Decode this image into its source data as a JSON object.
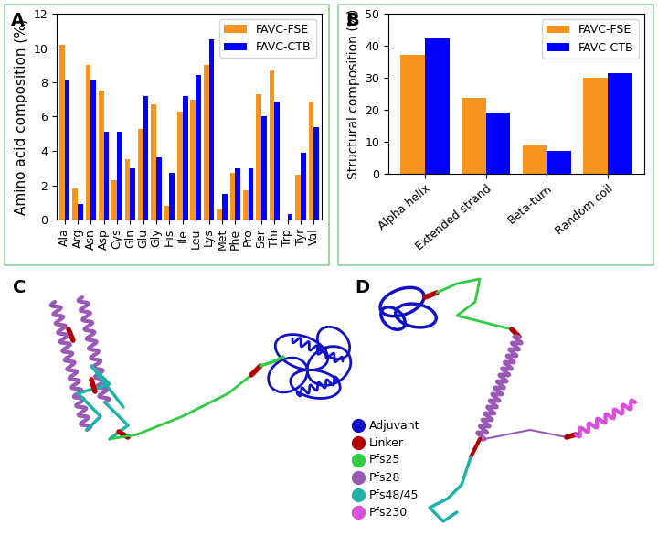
{
  "chart_data": [
    {
      "type": "bar",
      "title": "A",
      "categories": [
        "Ala",
        "Arg",
        "Asn",
        "Asp",
        "Cys",
        "Gln",
        "Glu",
        "Gly",
        "His",
        "Ile",
        "Leu",
        "Lys",
        "Met",
        "Phe",
        "Pro",
        "Ser",
        "Thr",
        "Trp",
        "Tyr",
        "Val"
      ],
      "y_label": "Amino acid composition (%)",
      "series": [
        {
          "name": "FAVC-FSE",
          "color": "#F7941D",
          "values": [
            10.2,
            1.8,
            9.0,
            7.5,
            2.3,
            3.5,
            5.3,
            6.7,
            0.8,
            6.3,
            7.0,
            9.0,
            0.6,
            2.7,
            1.7,
            7.3,
            8.7,
            0.0,
            2.6,
            6.9
          ]
        },
        {
          "name": "FAVC-CTB",
          "color": "#0000FF",
          "values": [
            8.1,
            0.9,
            8.1,
            5.1,
            5.1,
            3.0,
            7.2,
            3.6,
            2.7,
            7.2,
            8.4,
            10.5,
            1.5,
            3.0,
            3.0,
            6.0,
            6.9,
            0.3,
            3.9,
            5.4
          ]
        }
      ],
      "ylim": [
        0,
        12
      ],
      "yticks": [
        0,
        2,
        4,
        6,
        8,
        10,
        12
      ],
      "legend": "upper right"
    },
    {
      "type": "bar",
      "title": "B",
      "categories": [
        "Alpha helix",
        "Extended strand",
        "Beta-turn",
        "Random coil"
      ],
      "y_label": "Structural composition (%)",
      "series": [
        {
          "name": "FAVC-FSE",
          "color": "#F7941D",
          "values": [
            37.2,
            23.8,
            9.0,
            30.0
          ]
        },
        {
          "name": "FAVC-CTB",
          "color": "#0000FF",
          "values": [
            42.3,
            19.2,
            7.2,
            31.3
          ]
        }
      ],
      "ylim": [
        0,
        50
      ],
      "yticks": [
        0,
        10,
        20,
        30,
        40,
        50
      ],
      "legend": "upper right"
    }
  ],
  "structures": {
    "panels": [
      {
        "label": "C"
      },
      {
        "label": "D"
      }
    ],
    "legend": [
      {
        "label": "Adjuvant",
        "color": "#1010C8"
      },
      {
        "label": "Linker",
        "color": "#B00000"
      },
      {
        "label": "Pfs25",
        "color": "#2ECC40"
      },
      {
        "label": "Pfs28",
        "color": "#9B59B6"
      },
      {
        "label": "Pfs48/45",
        "color": "#20B2AA"
      },
      {
        "label": "Pfs230",
        "color": "#D94FD9"
      }
    ]
  }
}
